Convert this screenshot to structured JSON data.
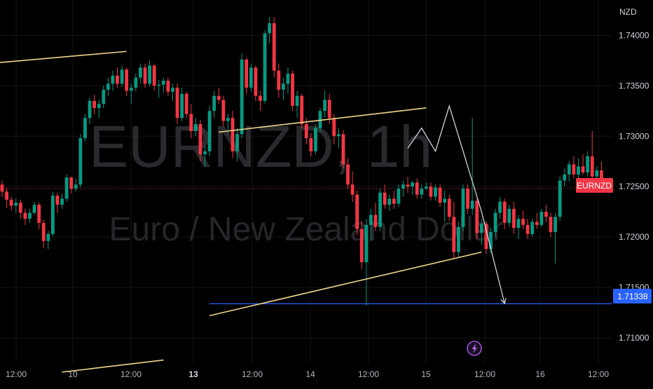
{
  "chart_data": {
    "type": "candlestick",
    "symbol": "EURNZD",
    "timeframe": "1h",
    "watermark_title": "EURNZD, 1h",
    "watermark_subtitle": "Euro / New Zealand Dollar",
    "currency": "NZD",
    "price_axis": {
      "range": [
        1.7075,
        1.7435
      ],
      "ticks": [
        "1.74000",
        "1.73500",
        "1.73000",
        "1.72500",
        "1.72000",
        "1.71500",
        "1.71000"
      ],
      "tick_values": [
        1.74,
        1.735,
        1.73,
        1.725,
        1.72,
        1.715,
        1.71
      ]
    },
    "time_axis": {
      "labels": [
        "12:00",
        "10",
        "12:00",
        "13",
        "12:00",
        "14",
        "12:00",
        "15",
        "12:00",
        "16",
        "12:00"
      ],
      "bold": [
        false,
        false,
        false,
        true,
        false,
        false,
        false,
        false,
        false,
        false,
        false
      ]
    },
    "current_price": {
      "label": "EURNZD",
      "value": 1.7248,
      "color": "#f23645"
    },
    "support_level": {
      "value": 1.71338,
      "label": "1.71338",
      "color": "#2962ff"
    },
    "colors": {
      "up": "#089981",
      "down": "#f23645",
      "trendline": "#f0d58c",
      "projection": "#d1d4dc"
    },
    "series": {
      "name": "EURNZD",
      "candles": [
        [
          1.7252,
          1.7256,
          1.724,
          1.7245
        ],
        [
          1.7245,
          1.7249,
          1.7229,
          1.7237
        ],
        [
          1.7237,
          1.724,
          1.7226,
          1.7231
        ],
        [
          1.7231,
          1.7238,
          1.7224,
          1.7234
        ],
        [
          1.7234,
          1.7237,
          1.7218,
          1.7224
        ],
        [
          1.7224,
          1.7228,
          1.7212,
          1.7218
        ],
        [
          1.7218,
          1.7228,
          1.7214,
          1.7224
        ],
        [
          1.7224,
          1.7235,
          1.7222,
          1.7232
        ],
        [
          1.7232,
          1.7234,
          1.7208,
          1.7214
        ],
        [
          1.7214,
          1.7217,
          1.7189,
          1.7196
        ],
        [
          1.7196,
          1.7206,
          1.7188,
          1.7203
        ],
        [
          1.7203,
          1.7245,
          1.7201,
          1.7241
        ],
        [
          1.7241,
          1.7244,
          1.7224,
          1.7232
        ],
        [
          1.7232,
          1.7243,
          1.7228,
          1.7238
        ],
        [
          1.7238,
          1.7262,
          1.7235,
          1.7259
        ],
        [
          1.7259,
          1.726,
          1.7243,
          1.7248
        ],
        [
          1.7248,
          1.7258,
          1.7245,
          1.7252
        ],
        [
          1.7252,
          1.7302,
          1.7249,
          1.7298
        ],
        [
          1.7298,
          1.7322,
          1.7295,
          1.7318
        ],
        [
          1.7318,
          1.7338,
          1.7312,
          1.7335
        ],
        [
          1.7335,
          1.7341,
          1.7322,
          1.7328
        ],
        [
          1.7328,
          1.7336,
          1.7318,
          1.7332
        ],
        [
          1.7332,
          1.735,
          1.7328,
          1.7346
        ],
        [
          1.7346,
          1.7358,
          1.734,
          1.7352
        ],
        [
          1.7352,
          1.7365,
          1.7345,
          1.736
        ],
        [
          1.736,
          1.7368,
          1.7348,
          1.7352
        ],
        [
          1.7352,
          1.737,
          1.7349,
          1.7366
        ],
        [
          1.7366,
          1.7368,
          1.734,
          1.7345
        ],
        [
          1.7345,
          1.7352,
          1.7332,
          1.7348
        ],
        [
          1.7348,
          1.7362,
          1.7344,
          1.7358
        ],
        [
          1.7358,
          1.7372,
          1.7352,
          1.7368
        ],
        [
          1.7368,
          1.7372,
          1.7348,
          1.7352
        ],
        [
          1.7352,
          1.7375,
          1.7349,
          1.737
        ],
        [
          1.737,
          1.7372,
          1.7345,
          1.735
        ],
        [
          1.735,
          1.7356,
          1.7338,
          1.7351
        ],
        [
          1.7351,
          1.7358,
          1.7343,
          1.7355
        ],
        [
          1.7355,
          1.7358,
          1.734,
          1.7344
        ],
        [
          1.7344,
          1.7352,
          1.7335,
          1.7348
        ],
        [
          1.7348,
          1.7352,
          1.7312,
          1.7318
        ],
        [
          1.7318,
          1.7348,
          1.7315,
          1.7342
        ],
        [
          1.7342,
          1.7344,
          1.7318,
          1.7322
        ],
        [
          1.7322,
          1.7332,
          1.7298,
          1.7305
        ],
        [
          1.7305,
          1.7318,
          1.73,
          1.7312
        ],
        [
          1.7312,
          1.7316,
          1.7275,
          1.7282
        ],
        [
          1.7282,
          1.729,
          1.727,
          1.7285
        ],
        [
          1.7285,
          1.733,
          1.728,
          1.7325
        ],
        [
          1.7325,
          1.7345,
          1.7318,
          1.734
        ],
        [
          1.734,
          1.7348,
          1.7332,
          1.7336
        ],
        [
          1.7336,
          1.734,
          1.731,
          1.7315
        ],
        [
          1.7315,
          1.7322,
          1.7302,
          1.7318
        ],
        [
          1.7318,
          1.7325,
          1.7278,
          1.7285
        ],
        [
          1.7285,
          1.7308,
          1.7275,
          1.7302
        ],
        [
          1.7302,
          1.7382,
          1.7298,
          1.7376
        ],
        [
          1.7376,
          1.7378,
          1.7342,
          1.7348
        ],
        [
          1.7348,
          1.7372,
          1.7344,
          1.7368
        ],
        [
          1.7368,
          1.737,
          1.7335,
          1.734
        ],
        [
          1.734,
          1.7345,
          1.7325,
          1.7335
        ],
        [
          1.7335,
          1.7405,
          1.7332,
          1.7402
        ],
        [
          1.7402,
          1.7418,
          1.7392,
          1.7412
        ],
        [
          1.7412,
          1.7418,
          1.7358,
          1.7365
        ],
        [
          1.7365,
          1.7372,
          1.7338,
          1.7346
        ],
        [
          1.7346,
          1.7358,
          1.7336,
          1.7352
        ],
        [
          1.7352,
          1.7368,
          1.7342,
          1.7362
        ],
        [
          1.7362,
          1.7365,
          1.7325,
          1.733
        ],
        [
          1.733,
          1.7345,
          1.7318,
          1.734
        ],
        [
          1.734,
          1.7342,
          1.7308,
          1.7312
        ],
        [
          1.7312,
          1.7318,
          1.7292,
          1.7298
        ],
        [
          1.7298,
          1.7303,
          1.728,
          1.7285
        ],
        [
          1.7285,
          1.7312,
          1.7282,
          1.7308
        ],
        [
          1.7308,
          1.7328,
          1.7304,
          1.7325
        ],
        [
          1.7325,
          1.7345,
          1.7318,
          1.7336
        ],
        [
          1.7336,
          1.7342,
          1.7312,
          1.7318
        ],
        [
          1.7318,
          1.7322,
          1.7292,
          1.73
        ],
        [
          1.73,
          1.7308,
          1.7288,
          1.7302
        ],
        [
          1.7302,
          1.7306,
          1.7268,
          1.7272
        ],
        [
          1.7272,
          1.7278,
          1.7248,
          1.7252
        ],
        [
          1.7252,
          1.7265,
          1.7235,
          1.7242
        ],
        [
          1.7242,
          1.7246,
          1.7202,
          1.7208
        ],
        [
          1.7208,
          1.7216,
          1.7168,
          1.7175
        ],
        [
          1.7175,
          1.7218,
          1.7132,
          1.7212
        ],
        [
          1.7212,
          1.7228,
          1.7196,
          1.7222
        ],
        [
          1.7222,
          1.7234,
          1.7206,
          1.721
        ],
        [
          1.721,
          1.7248,
          1.7206,
          1.7244
        ],
        [
          1.7244,
          1.7252,
          1.7228,
          1.7232
        ],
        [
          1.7232,
          1.7242,
          1.7226,
          1.7238
        ],
        [
          1.7238,
          1.7246,
          1.7228,
          1.7233
        ],
        [
          1.7233,
          1.7252,
          1.723,
          1.7248
        ],
        [
          1.7248,
          1.7256,
          1.724,
          1.7252
        ],
        [
          1.7252,
          1.726,
          1.7244,
          1.725
        ],
        [
          1.725,
          1.7256,
          1.7242,
          1.7254
        ],
        [
          1.7254,
          1.7258,
          1.7238,
          1.7242
        ],
        [
          1.7242,
          1.7252,
          1.7238,
          1.7248
        ],
        [
          1.7248,
          1.7254,
          1.7246,
          1.725
        ],
        [
          1.725,
          1.7254,
          1.7236,
          1.724
        ],
        [
          1.724,
          1.7252,
          1.7236,
          1.7249
        ],
        [
          1.7249,
          1.7252,
          1.723,
          1.7234
        ],
        [
          1.7234,
          1.7246,
          1.7215,
          1.7238
        ],
        [
          1.7238,
          1.7242,
          1.7216,
          1.722
        ],
        [
          1.722,
          1.7235,
          1.7178,
          1.7185
        ],
        [
          1.7185,
          1.7215,
          1.718,
          1.721
        ],
        [
          1.721,
          1.7252,
          1.7206,
          1.7248
        ],
        [
          1.7248,
          1.7252,
          1.7223,
          1.7228
        ],
        [
          1.7228,
          1.7318,
          1.7222,
          1.7236
        ],
        [
          1.7236,
          1.7238,
          1.7198,
          1.7204
        ],
        [
          1.7204,
          1.7218,
          1.7192,
          1.7213
        ],
        [
          1.7213,
          1.7216,
          1.7183,
          1.7188
        ],
        [
          1.7188,
          1.7209,
          1.7184,
          1.7205
        ],
        [
          1.7205,
          1.7228,
          1.72,
          1.7224
        ],
        [
          1.7224,
          1.724,
          1.7218,
          1.7235
        ],
        [
          1.7235,
          1.7238,
          1.7208,
          1.7214
        ],
        [
          1.7214,
          1.7232,
          1.721,
          1.7228
        ],
        [
          1.7228,
          1.7235,
          1.7203,
          1.7209
        ],
        [
          1.7209,
          1.7222,
          1.7198,
          1.7218
        ],
        [
          1.7218,
          1.7226,
          1.7208,
          1.7212
        ],
        [
          1.7212,
          1.7218,
          1.7198,
          1.7203
        ],
        [
          1.7203,
          1.7218,
          1.72,
          1.7215
        ],
        [
          1.7215,
          1.7224,
          1.7208,
          1.7212
        ],
        [
          1.7212,
          1.7228,
          1.721,
          1.7225
        ],
        [
          1.7225,
          1.7232,
          1.7215,
          1.722
        ],
        [
          1.722,
          1.7224,
          1.72,
          1.7205
        ],
        [
          1.7205,
          1.7224,
          1.7174,
          1.722
        ],
        [
          1.722,
          1.726,
          1.7216,
          1.7256
        ],
        [
          1.7256,
          1.7268,
          1.725,
          1.7262
        ],
        [
          1.7262,
          1.7275,
          1.7255,
          1.7272
        ],
        [
          1.7272,
          1.728,
          1.7258,
          1.7262
        ],
        [
          1.7262,
          1.7278,
          1.7258,
          1.727
        ],
        [
          1.727,
          1.7282,
          1.7262,
          1.7264
        ],
        [
          1.7264,
          1.7285,
          1.726,
          1.728
        ],
        [
          1.728,
          1.7305,
          1.7255,
          1.726
        ],
        [
          1.726,
          1.727,
          1.725,
          1.7266
        ],
        [
          1.7266,
          1.7275,
          1.7245,
          1.7249
        ]
      ]
    },
    "trendlines": [
      {
        "x": [
          -3,
          27
        ],
        "y": [
          1.7372,
          1.7384
        ]
      },
      {
        "x": [
          47,
          92
        ],
        "y": [
          1.7304,
          1.7328
        ]
      },
      {
        "x": [
          45,
          104
        ],
        "y": [
          1.7122,
          1.7185
        ]
      },
      {
        "x": [
          13,
          35
        ],
        "y": [
          1.7066,
          1.7078
        ]
      }
    ],
    "projection_path": {
      "x": [
        88,
        91,
        94,
        97,
        104,
        109
      ],
      "y": [
        1.7288,
        1.7308,
        1.7285,
        1.733,
        1.7225,
        1.7134
      ]
    }
  }
}
